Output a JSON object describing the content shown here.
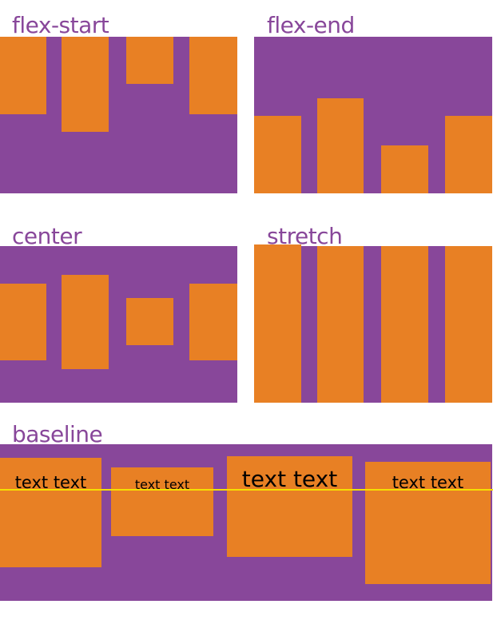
{
  "colors": {
    "container": "#88479a",
    "item": "#e88024",
    "baseline_line": "#f5e000",
    "label": "#88479a"
  },
  "panels": {
    "flex_start": {
      "label": "flex-start"
    },
    "flex_end": {
      "label": "flex-end"
    },
    "center": {
      "label": "center"
    },
    "stretch": {
      "label": "stretch"
    },
    "baseline": {
      "label": "baseline",
      "items": [
        "text text",
        "text text",
        "text text",
        "text text"
      ]
    }
  }
}
